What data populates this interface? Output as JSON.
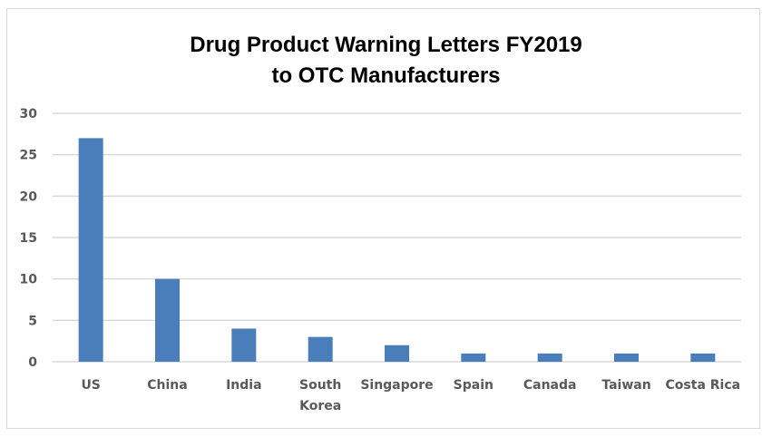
{
  "chart_data": {
    "type": "bar",
    "title": "Drug Product Warning Letters FY2019 to OTC Manufacturers",
    "title_lines": [
      "Drug Product Warning Letters FY2019",
      "to OTC Manufacturers"
    ],
    "categories": [
      "US",
      "China",
      "India",
      "South Korea",
      "Singapore",
      "Spain",
      "Canada",
      "Taiwan",
      "Costa Rica"
    ],
    "category_lines": [
      [
        "US"
      ],
      [
        "China"
      ],
      [
        "India"
      ],
      [
        "South",
        "Korea"
      ],
      [
        "Singapore"
      ],
      [
        "Spain"
      ],
      [
        "Canada"
      ],
      [
        "Taiwan"
      ],
      [
        "Costa Rica"
      ]
    ],
    "values": [
      27,
      10,
      4,
      3,
      2,
      1,
      1,
      1,
      1
    ],
    "xlabel": "",
    "ylabel": "",
    "ylim": [
      0,
      30
    ],
    "yticks": [
      0,
      5,
      10,
      15,
      20,
      25,
      30
    ],
    "grid": true,
    "legend": "none",
    "bar_color": "#4a7ebb",
    "grid_color": "#d9d9d9"
  }
}
